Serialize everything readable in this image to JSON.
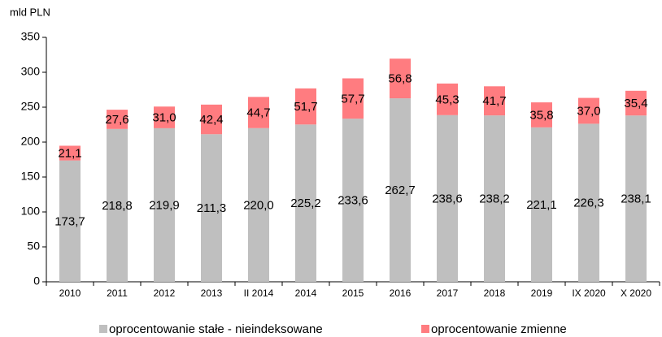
{
  "chart_data": {
    "type": "stacked_bar",
    "y_label": "mld PLN",
    "categories": [
      "2010",
      "2011",
      "2012",
      "2013",
      "II 2014",
      "2014",
      "2015",
      "2016",
      "2017",
      "2018",
      "2019",
      "IX 2020",
      "X 2020"
    ],
    "series": [
      {
        "name": "oprocentowanie stałe - nieindeksowane",
        "color": "#bfbfbf",
        "values": [
          173.7,
          218.8,
          219.9,
          211.3,
          220.0,
          225.2,
          233.6,
          262.7,
          238.6,
          238.2,
          221.1,
          226.3,
          238.1
        ],
        "value_labels": [
          "173,7",
          "218,8",
          "219,9",
          "211,3",
          "220,0",
          "225,2",
          "233,6",
          "262,7",
          "238,6",
          "238,2",
          "221,1",
          "226,3",
          "238,1"
        ]
      },
      {
        "name": "oprocentowanie zmienne",
        "color": "#ff7c80",
        "values": [
          21.1,
          27.6,
          31.0,
          42.4,
          44.7,
          51.7,
          57.7,
          56.8,
          45.3,
          41.7,
          35.8,
          37.0,
          35.4
        ],
        "value_labels": [
          "21,1",
          "27,6",
          "31,0",
          "42,4",
          "44,7",
          "51,7",
          "57,7",
          "56,8",
          "45,3",
          "41,7",
          "35,8",
          "37,0",
          "35,4"
        ]
      }
    ],
    "ylim": [
      0,
      350
    ],
    "yticks": [
      0,
      50,
      100,
      150,
      200,
      250,
      300,
      350
    ],
    "legend": "bottom"
  }
}
